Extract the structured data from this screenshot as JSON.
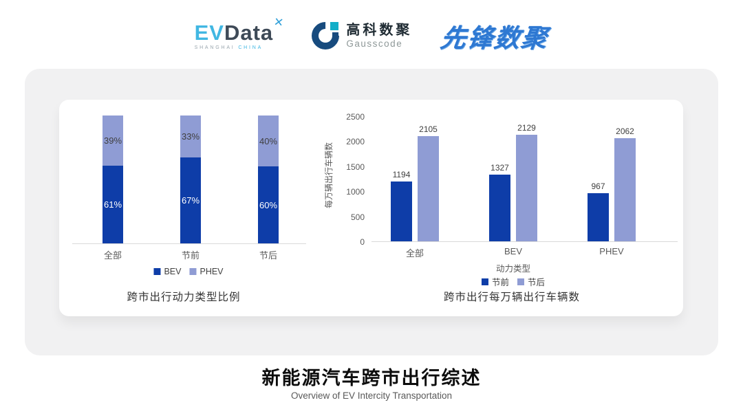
{
  "header": {
    "evdata": {
      "ev": "EV",
      "data": "Data",
      "mark": "✕",
      "sub_left": "SHANGHAI",
      "sub_right": "CHINA"
    },
    "gausscode": {
      "cn": "高科数聚",
      "en": "Gausscode"
    },
    "pioneer": {
      "text": "先锋数聚"
    }
  },
  "colors": {
    "series_dark": "#0e3da8",
    "series_light": "#8f9cd4",
    "axis_line": "#d9d9d9",
    "axis_text": "#595959",
    "value_label": "#3f3f3f",
    "segment_label_light": "#3f3f3f",
    "segment_label_dark": "#ffffff",
    "card_bg": "#f1f1f2",
    "evdata_cyan": "#41b7e2",
    "pioneer_blue": "#2e78d2"
  },
  "chart_data": [
    {
      "type": "bar",
      "variant": "stacked-percent",
      "title": "跨市出行动力类型比例",
      "categories": [
        "全部",
        "节前",
        "节后"
      ],
      "series": [
        {
          "name": "BEV",
          "values": [
            61,
            67,
            60
          ],
          "unit": "%"
        },
        {
          "name": "PHEV",
          "values": [
            39,
            33,
            40
          ],
          "unit": "%"
        }
      ],
      "ylim": [
        0,
        100
      ],
      "legend_position": "bottom",
      "grid": false
    },
    {
      "type": "bar",
      "variant": "grouped",
      "title": "跨市出行每万辆出行车辆数",
      "categories": [
        "全部",
        "BEV",
        "PHEV"
      ],
      "xlabel": "动力类型",
      "ylabel": "每万辆出行车辆数",
      "series": [
        {
          "name": "节前",
          "values": [
            1194,
            1327,
            967
          ]
        },
        {
          "name": "节后",
          "values": [
            2105,
            2129,
            2062
          ]
        }
      ],
      "ylim": [
        0,
        2500
      ],
      "yticks": [
        0,
        500,
        1000,
        1500,
        2000,
        2500
      ],
      "legend_position": "bottom",
      "grid": false
    }
  ],
  "footer": {
    "title": "新能源汽车跨市出行综述",
    "subtitle": "Overview of EV Intercity Transportation"
  }
}
